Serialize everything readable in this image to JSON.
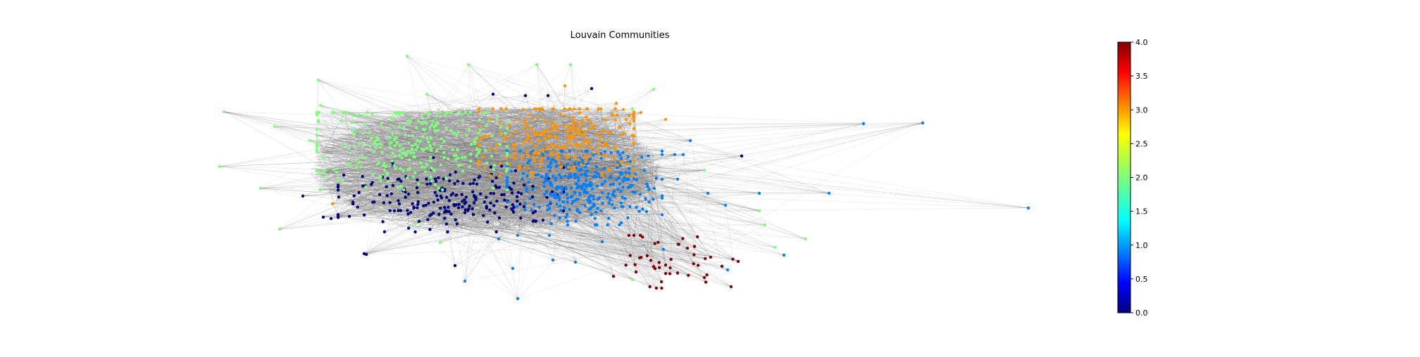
{
  "figure": {
    "title": "Louvain Communities"
  },
  "colorbar": {
    "min": 0.0,
    "max": 4.0,
    "ticks": [
      "0.0",
      "0.5",
      "1.0",
      "1.5",
      "2.0",
      "2.5",
      "3.0",
      "3.5",
      "4.0"
    ],
    "colormap": "jet"
  },
  "communities": [
    {
      "id": 0,
      "color": "#00007f"
    },
    {
      "id": 1,
      "color": "#0080ff"
    },
    {
      "id": 2,
      "color": "#7dff7a"
    },
    {
      "id": 3,
      "color": "#ff9400"
    },
    {
      "id": 4,
      "color": "#7f0000"
    }
  ]
}
